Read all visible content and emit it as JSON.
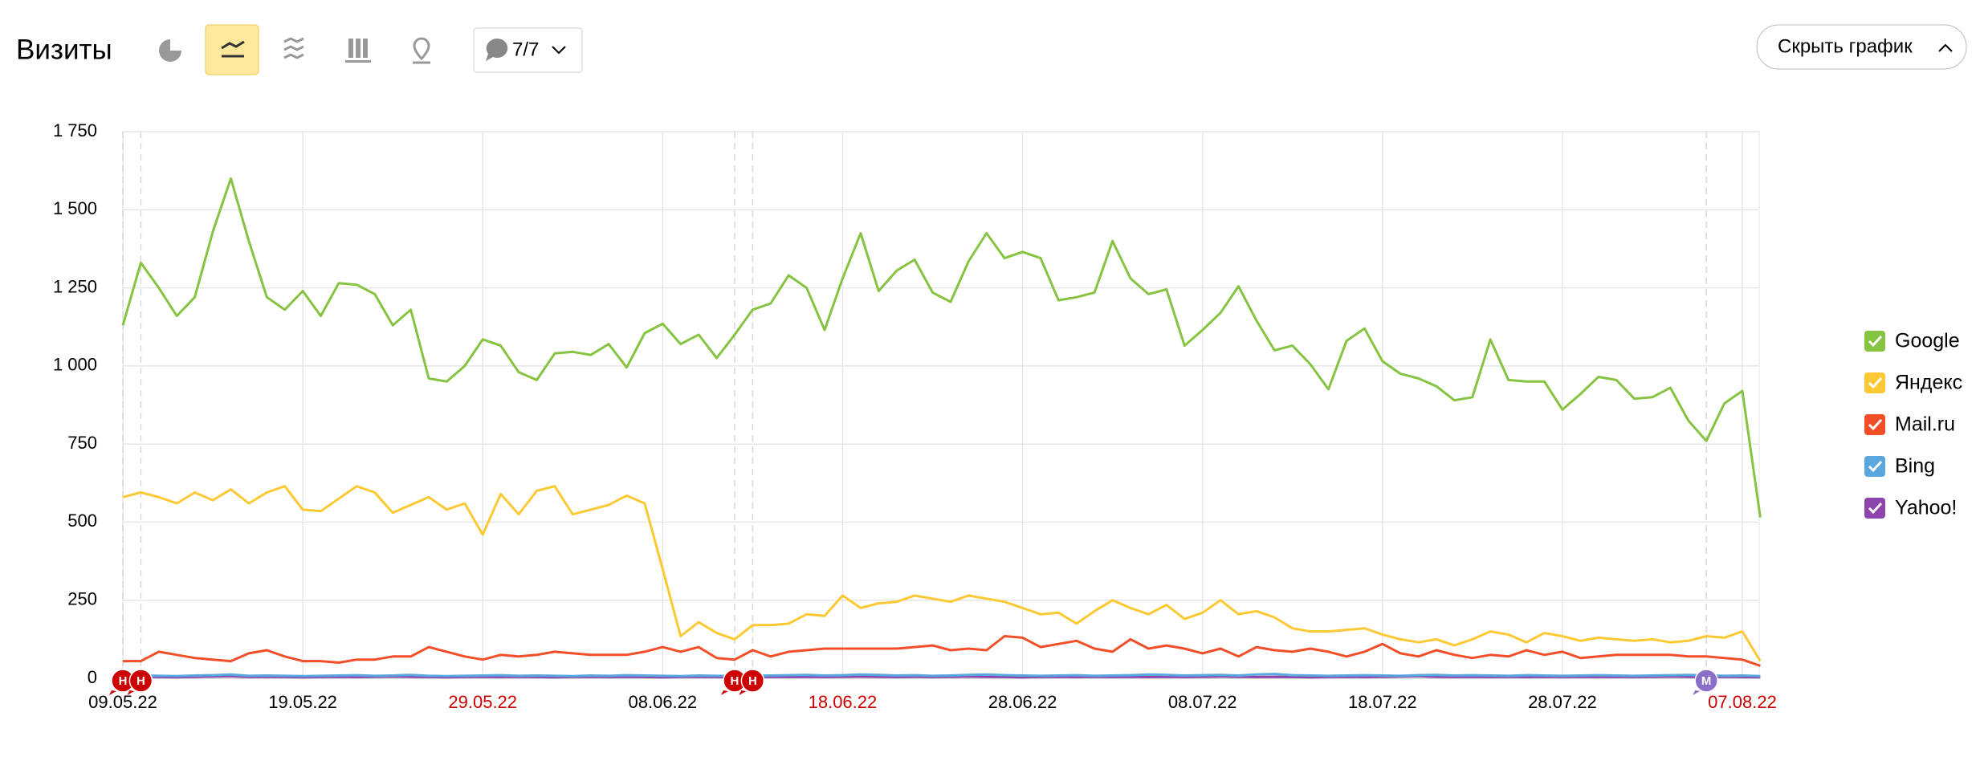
{
  "header": {
    "title": "Визиты",
    "filter": "7/7",
    "hide_button": "Скрыть график"
  },
  "chart_data": {
    "type": "line",
    "categories": [
      "09.05.22",
      null,
      null,
      null,
      null,
      null,
      null,
      null,
      null,
      null,
      "19.05.22",
      null,
      null,
      null,
      null,
      null,
      null,
      null,
      null,
      null,
      "29.05.22",
      null,
      null,
      null,
      null,
      null,
      null,
      null,
      null,
      null,
      "08.06.22",
      null,
      null,
      null,
      null,
      null,
      null,
      null,
      null,
      null,
      "18.06.22",
      null,
      null,
      null,
      null,
      null,
      null,
      null,
      null,
      null,
      "28.06.22",
      null,
      null,
      null,
      null,
      null,
      null,
      null,
      null,
      null,
      "08.07.22",
      null,
      null,
      null,
      null,
      null,
      null,
      null,
      null,
      null,
      "18.07.22",
      null,
      null,
      null,
      null,
      null,
      null,
      null,
      null,
      null,
      "28.07.22",
      null,
      null,
      null,
      null,
      null,
      null,
      null,
      null,
      null,
      "07.08.22",
      null
    ],
    "highlighted_dates": [
      "29.05.22",
      "18.06.22",
      "07.08.22"
    ],
    "highlight_color": "#cc0000",
    "ylim": [
      0,
      1750
    ],
    "yticks": [
      0,
      250,
      500,
      750,
      {
        "value": 1000,
        "label": "1 000"
      },
      {
        "value": 1250,
        "label": "1 250"
      },
      {
        "value": 1500,
        "label": "1 500"
      },
      {
        "value": 1750,
        "label": "1 750"
      }
    ],
    "grid": true,
    "legend": "right",
    "series": [
      {
        "name": "Google",
        "color": "#86c341",
        "values": [
          1130,
          1330,
          1250,
          1160,
          1220,
          1430,
          1600,
          1400,
          1220,
          1180,
          1240,
          1160,
          1265,
          1260,
          1230,
          1130,
          1180,
          960,
          950,
          1000,
          1085,
          1065,
          980,
          955,
          1040,
          1045,
          1035,
          1070,
          995,
          1105,
          1135,
          1070,
          1100,
          1025,
          1100,
          1180,
          1200,
          1290,
          1250,
          1115,
          1280,
          1425,
          1240,
          1305,
          1340,
          1235,
          1205,
          1335,
          1425,
          1345,
          1365,
          1345,
          1210,
          1220,
          1235,
          1400,
          1280,
          1230,
          1245,
          1065,
          1115,
          1170,
          1255,
          1145,
          1050,
          1065,
          1005,
          925,
          1080,
          1120,
          1015,
          975,
          960,
          935,
          890,
          900,
          1085,
          955,
          950,
          950,
          860,
          910,
          965,
          955,
          895,
          900,
          930,
          825,
          760,
          880,
          920,
          515
        ]
      },
      {
        "name": "Яндекс",
        "color": "#fcc934",
        "values": [
          580,
          595,
          580,
          560,
          595,
          570,
          605,
          560,
          595,
          615,
          540,
          535,
          575,
          615,
          595,
          530,
          555,
          580,
          540,
          560,
          460,
          590,
          525,
          600,
          615,
          525,
          540,
          555,
          585,
          560,
          350,
          135,
          180,
          145,
          125,
          170,
          170,
          175,
          205,
          200,
          265,
          225,
          240,
          245,
          265,
          255,
          245,
          265,
          255,
          245,
          225,
          205,
          210,
          175,
          215,
          250,
          225,
          205,
          235,
          190,
          210,
          250,
          205,
          215,
          195,
          160,
          150,
          150,
          155,
          160,
          140,
          125,
          115,
          125,
          105,
          125,
          150,
          140,
          115,
          145,
          135,
          120,
          130,
          125,
          120,
          125,
          115,
          120,
          135,
          130,
          150,
          55
        ]
      },
      {
        "name": "Mail.ru",
        "color": "#f44e29",
        "values": [
          55,
          55,
          85,
          75,
          65,
          60,
          55,
          80,
          90,
          70,
          55,
          55,
          50,
          60,
          60,
          70,
          70,
          100,
          85,
          70,
          60,
          75,
          70,
          75,
          85,
          80,
          75,
          75,
          75,
          85,
          100,
          85,
          100,
          65,
          60,
          90,
          70,
          85,
          90,
          95,
          95,
          95,
          95,
          95,
          100,
          105,
          90,
          95,
          90,
          135,
          130,
          100,
          110,
          120,
          95,
          85,
          125,
          95,
          105,
          95,
          80,
          95,
          70,
          100,
          90,
          85,
          95,
          85,
          70,
          85,
          110,
          80,
          70,
          90,
          75,
          65,
          75,
          70,
          90,
          75,
          85,
          65,
          70,
          75,
          75,
          75,
          75,
          70,
          70,
          65,
          60,
          40
        ]
      },
      {
        "name": "Bing",
        "color": "#5aa7e0",
        "values": [
          8,
          9,
          8,
          7,
          9,
          10,
          12,
          8,
          9,
          8,
          7,
          8,
          9,
          10,
          8,
          9,
          11,
          8,
          7,
          8,
          9,
          10,
          8,
          9,
          8,
          7,
          9,
          8,
          10,
          9,
          8,
          7,
          9,
          8,
          7,
          8,
          9,
          10,
          11,
          9,
          10,
          12,
          11,
          9,
          10,
          8,
          9,
          11,
          12,
          10,
          9,
          8,
          9,
          10,
          8,
          9,
          10,
          12,
          11,
          9,
          10,
          11,
          9,
          12,
          14,
          10,
          9,
          8,
          9,
          10,
          9,
          8,
          10,
          11,
          9,
          10,
          9,
          8,
          10,
          9,
          8,
          9,
          10,
          9,
          8,
          9,
          10,
          11,
          9,
          8,
          9,
          7
        ]
      },
      {
        "name": "Yahoo!",
        "color": "#8e44ad",
        "values": [
          4,
          5,
          4,
          3,
          5,
          6,
          7,
          4,
          5,
          4,
          3,
          4,
          5,
          4,
          5,
          6,
          5,
          4,
          3,
          4,
          5,
          4,
          5,
          4,
          3,
          4,
          5,
          4,
          5,
          4,
          3,
          4,
          5,
          4,
          3,
          4,
          5,
          4,
          5,
          4,
          5,
          6,
          5,
          4,
          5,
          4,
          5,
          6,
          5,
          4,
          3,
          4,
          5,
          4,
          5,
          4,
          5,
          4,
          5,
          4,
          5,
          6,
          5,
          4,
          5,
          4,
          3,
          4,
          5,
          4,
          5,
          6,
          7,
          5,
          4,
          5,
          4,
          5,
          4,
          5,
          4,
          5,
          4,
          5,
          4,
          5,
          6,
          5,
          4,
          5,
          4,
          3
        ]
      }
    ],
    "annotations": [
      {
        "label": "Н",
        "index": 0,
        "color": "#cc0000"
      },
      {
        "label": "Н",
        "index": 1,
        "color": "#cc0000"
      },
      {
        "label": "Н",
        "index": 34,
        "color": "#cc0000"
      },
      {
        "label": "Н",
        "index": 35,
        "color": "#cc0000"
      },
      {
        "label": "М",
        "index": 88,
        "color": "#8a6fc9"
      }
    ]
  }
}
